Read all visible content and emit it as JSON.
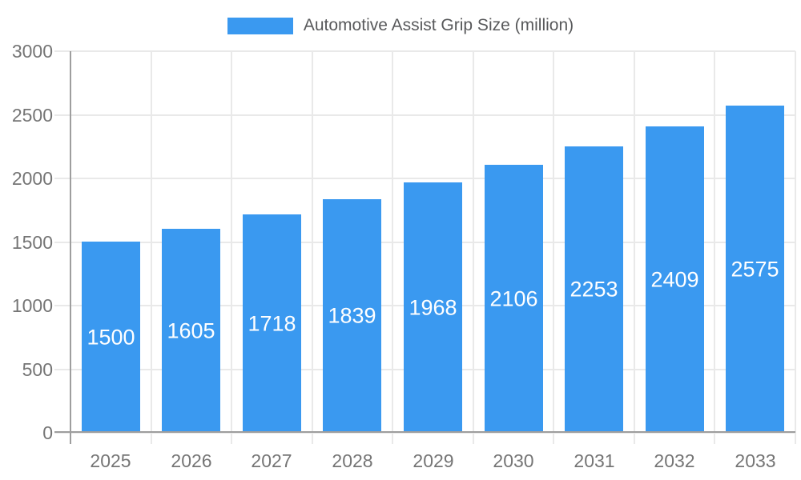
{
  "legend": {
    "label": "Automotive Assist Grip Size (million)"
  },
  "chart_data": {
    "type": "bar",
    "title": "Automotive Assist Grip Size (million)",
    "categories": [
      "2025",
      "2026",
      "2027",
      "2028",
      "2029",
      "2030",
      "2031",
      "2032",
      "2033"
    ],
    "series": [
      {
        "name": "Automotive Assist Grip Size (million)",
        "values": [
          1500,
          1605,
          1718,
          1839,
          1968,
          2106,
          2253,
          2409,
          2575
        ]
      }
    ],
    "xlabel": "",
    "ylabel": "",
    "ylim": [
      0,
      3000
    ],
    "yticks": [
      0,
      500,
      1000,
      1500,
      2000,
      2500,
      3000
    ],
    "grid": true,
    "legend_position": "top",
    "value_labels": true
  },
  "style": {
    "bar_color": "#3a99f0",
    "value_label_color": "#ffffff",
    "grid_color": "#e9e9e9",
    "axis_line_color": "#9e9e9e",
    "tick_label_color": "#757575",
    "title_color": "#58595b",
    "background": "#ffffff"
  }
}
